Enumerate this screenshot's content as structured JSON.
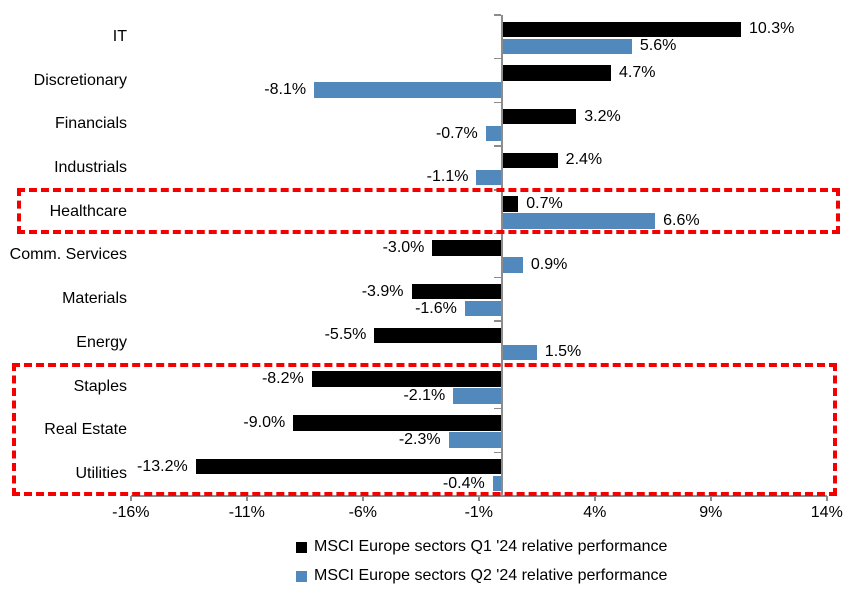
{
  "chart_data": {
    "type": "bar",
    "orientation": "horizontal",
    "title": "",
    "categories": [
      "IT",
      "Discretionary",
      "Financials",
      "Industrials",
      "Healthcare",
      "Comm. Services",
      "Materials",
      "Energy",
      "Staples",
      "Real Estate",
      "Utilities"
    ],
    "series": [
      {
        "name": "MSCI Europe sectors Q1 '24 relative performance",
        "color": "#000000",
        "values": [
          10.3,
          4.7,
          3.2,
          2.4,
          0.7,
          -3.0,
          -3.9,
          -5.5,
          -8.2,
          -9.0,
          -13.2
        ],
        "value_labels": [
          "10.3%",
          "4.7%",
          "3.2%",
          "2.4%",
          "0.7%",
          "-3.0%",
          "-3.9%",
          "-5.5%",
          "-8.2%",
          "-9.0%",
          "-13.2%"
        ]
      },
      {
        "name": "MSCI Europe sectors Q2 '24 relative performance",
        "color": "#5289bd",
        "values": [
          5.6,
          -8.1,
          -0.7,
          -1.1,
          6.6,
          0.9,
          -1.6,
          1.5,
          -2.1,
          -2.3,
          -0.4
        ],
        "value_labels": [
          "5.6%",
          "-8.1%",
          "-0.7%",
          "-1.1%",
          "6.6%",
          "0.9%",
          "-1.6%",
          "1.5%",
          "-2.1%",
          "-2.3%",
          "-0.4%"
        ]
      }
    ],
    "x_ticks": [
      {
        "value": -16,
        "label": "-16%"
      },
      {
        "value": -11,
        "label": "-11%"
      },
      {
        "value": -6,
        "label": "-6%"
      },
      {
        "value": -1,
        "label": "-1%"
      },
      {
        "value": 4,
        "label": "4%"
      },
      {
        "value": 9,
        "label": "9%"
      },
      {
        "value": 14,
        "label": "14%"
      }
    ],
    "xlim": [
      -16,
      14
    ],
    "grid": false,
    "legend_position": "bottom",
    "highlight_boxes": [
      {
        "from_category": "Healthcare",
        "to_category": "Healthcare",
        "color": "#f40000"
      },
      {
        "from_category": "Staples",
        "to_category": "Utilities",
        "color": "#f40000"
      }
    ]
  },
  "colors": {
    "q1_bar": "#000000",
    "q2_bar": "#5289bd",
    "axis": "#8c8c8c",
    "highlight": "#f40000",
    "text": "#000000",
    "background": "#ffffff"
  }
}
